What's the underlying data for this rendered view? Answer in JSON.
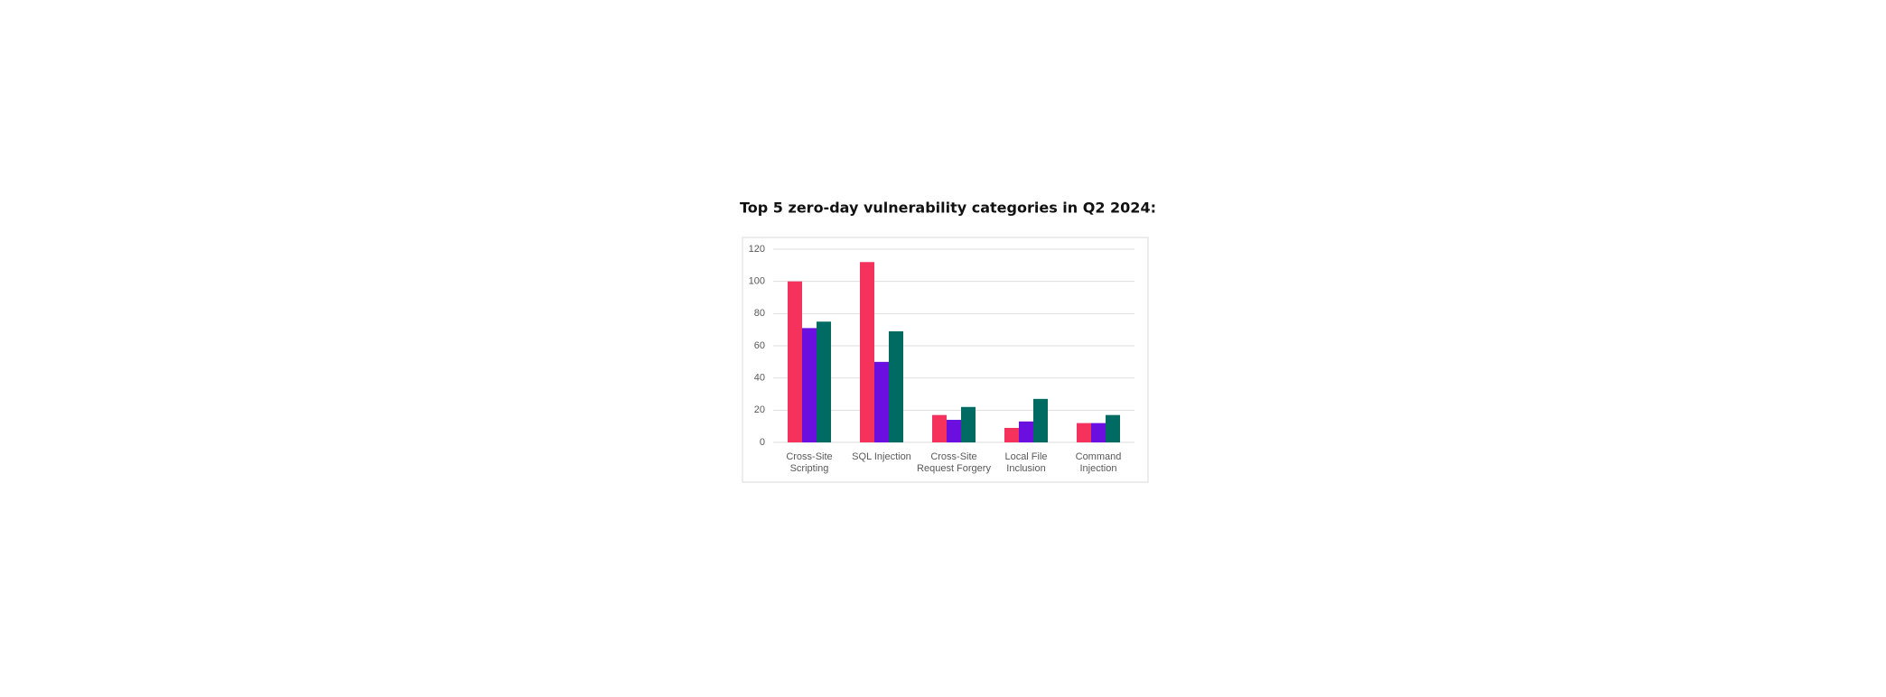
{
  "chart_data": {
    "type": "bar",
    "title": "Top 5 zero-day vulnerability categories in Q2 2024:",
    "categories": [
      [
        "Cross-Site",
        "Scripting"
      ],
      [
        "SQL Injection"
      ],
      [
        "Cross-Site",
        "Request Forgery"
      ],
      [
        "Local File",
        "Inclusion"
      ],
      [
        "Command",
        "Injection"
      ]
    ],
    "series": [
      {
        "color": "#f5325c",
        "values": [
          100,
          112,
          17,
          9,
          12
        ]
      },
      {
        "color": "#6a0fe0",
        "values": [
          71,
          50,
          14,
          13,
          12
        ]
      },
      {
        "color": "#006b63",
        "values": [
          75,
          69,
          22,
          27,
          17
        ]
      }
    ],
    "ylim": [
      0,
      120
    ],
    "yticks": [
      0,
      20,
      40,
      60,
      80,
      100,
      120
    ],
    "grid": true
  }
}
